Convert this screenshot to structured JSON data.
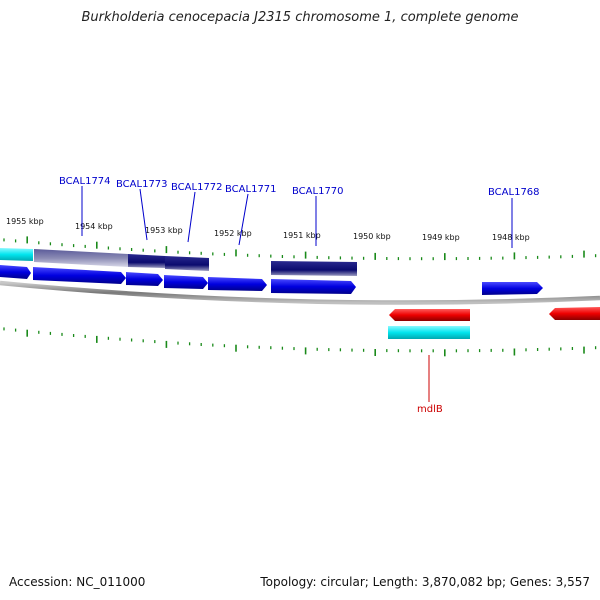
{
  "title": "Burkholderia cenocepacia J2315 chromosome 1, complete genome",
  "accession": "Accession: NC_011000",
  "topology": "Topology: circular; Length: 3,870,082 bp; Genes: 3,557",
  "kbp_labels": [
    "1955 kbp",
    "1954 kbp",
    "1953 kbp",
    "1952 kbp",
    "1951 kbp",
    "1950 kbp",
    "1949 kbp",
    "1948 kbp"
  ],
  "gene_labels": [
    "BCAL1774",
    "BCAL1773",
    "BCAL1772",
    "BCAL1771",
    "BCAL1770",
    "BCAL1768",
    "mdlB"
  ],
  "colors": {
    "forward_gene": "#0000ee",
    "dark_gene": "#0a0a6e",
    "reverse_gene": "#ee0000",
    "cyan_feature": "#00e5ee",
    "label_blue": "#0000cc",
    "label_red": "#cc0000",
    "tick_green": "#1a8a1a",
    "backbone": "#888888"
  }
}
